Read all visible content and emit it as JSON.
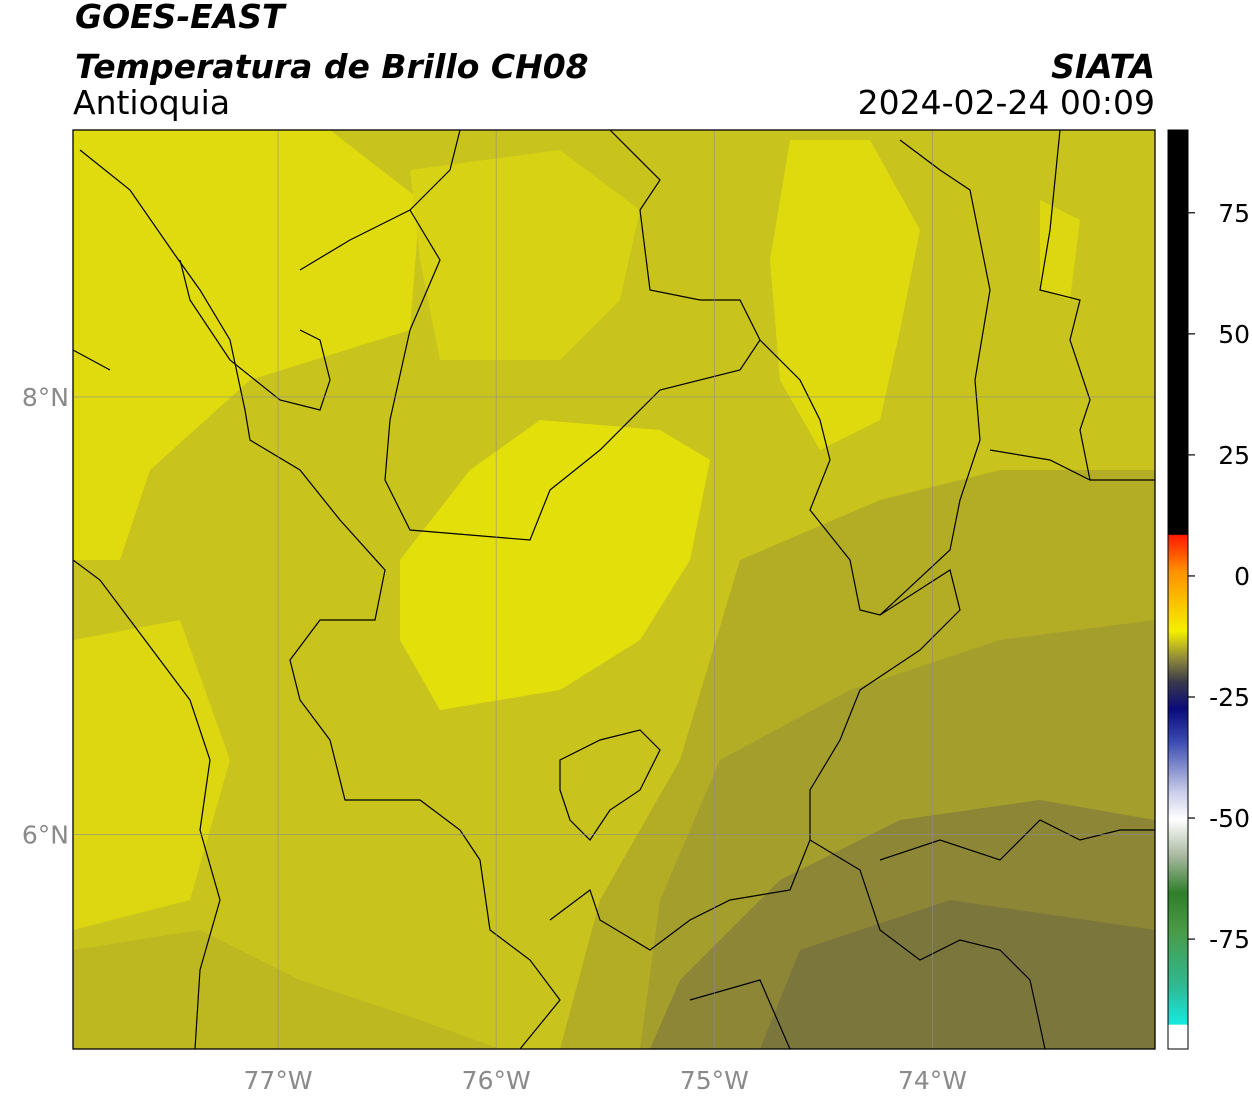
{
  "map": {
    "title": "GOES-EAST",
    "subtitle": "Temperatura de Brillo CH08",
    "region": "Antioquia",
    "source": "SIATA",
    "datetime": "2024-02-24 00:09",
    "xlim": [
      -77.94,
      -72.98
    ],
    "ylim": [
      5.02,
      9.22
    ],
    "xticks": [
      {
        "value": -77,
        "label": "77°W"
      },
      {
        "value": -76,
        "label": "76°W"
      },
      {
        "value": -75,
        "label": "75°W"
      },
      {
        "value": -74,
        "label": "74°W"
      }
    ],
    "yticks": [
      {
        "value": 8,
        "label": "8°N"
      },
      {
        "value": 6,
        "label": "6°N"
      }
    ],
    "grid": true,
    "colorbar": {
      "lim": [
        -97.7,
        92.1
      ],
      "ticks": [
        75,
        50,
        25,
        0,
        -25,
        -50,
        -75
      ]
    }
  }
}
